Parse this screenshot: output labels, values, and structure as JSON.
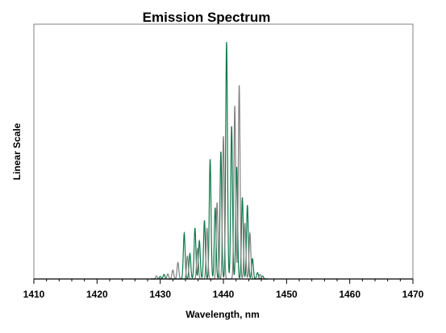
{
  "chart_data": {
    "type": "line",
    "title": "Emission Spectrum",
    "xlabel": "Wavelength, nm",
    "ylabel": "Linear Scale",
    "xlim": [
      1410,
      1470
    ],
    "ylim": [
      0,
      1
    ],
    "x_ticks": [
      1410,
      1420,
      1430,
      1440,
      1450,
      1460,
      1470
    ],
    "x_tick_labels": [
      "1410",
      "1420",
      "1430",
      "1440",
      "1450",
      "1460",
      "1470"
    ],
    "y_ticks_labeled": false,
    "grid": false,
    "legend": "none",
    "colors": {
      "green": "#0a7a4a",
      "gray": "#808080",
      "frame": "#808080",
      "axis": "#000000"
    },
    "series": [
      {
        "color": "green",
        "peaks": [
          {
            "x": 1430.0,
            "y": 0.01
          },
          {
            "x": 1430.6,
            "y": 0.018
          },
          {
            "x": 1433.8,
            "y": 0.18
          },
          {
            "x": 1434.7,
            "y": 0.1
          },
          {
            "x": 1435.5,
            "y": 0.2
          },
          {
            "x": 1436.2,
            "y": 0.15
          },
          {
            "x": 1437.0,
            "y": 0.23
          },
          {
            "x": 1437.9,
            "y": 0.47
          },
          {
            "x": 1438.7,
            "y": 0.28
          },
          {
            "x": 1439.6,
            "y": 0.5
          },
          {
            "x": 1440.5,
            "y": 0.93
          },
          {
            "x": 1441.3,
            "y": 0.6
          },
          {
            "x": 1442.1,
            "y": 0.44
          },
          {
            "x": 1443.0,
            "y": 0.32
          },
          {
            "x": 1443.8,
            "y": 0.29
          },
          {
            "x": 1444.6,
            "y": 0.08
          },
          {
            "x": 1445.4,
            "y": 0.025
          },
          {
            "x": 1446.2,
            "y": 0.012
          }
        ]
      },
      {
        "color": "gray",
        "peaks": [
          {
            "x": 1429.4,
            "y": 0.012
          },
          {
            "x": 1431.2,
            "y": 0.02
          },
          {
            "x": 1432.0,
            "y": 0.035
          },
          {
            "x": 1432.8,
            "y": 0.065
          },
          {
            "x": 1434.3,
            "y": 0.09
          },
          {
            "x": 1435.9,
            "y": 0.12
          },
          {
            "x": 1437.4,
            "y": 0.2
          },
          {
            "x": 1439.0,
            "y": 0.3
          },
          {
            "x": 1440.0,
            "y": 0.56
          },
          {
            "x": 1441.8,
            "y": 0.68
          },
          {
            "x": 1442.5,
            "y": 0.76
          },
          {
            "x": 1443.4,
            "y": 0.22
          },
          {
            "x": 1444.2,
            "y": 0.18
          },
          {
            "x": 1445.8,
            "y": 0.018
          }
        ]
      }
    ]
  }
}
